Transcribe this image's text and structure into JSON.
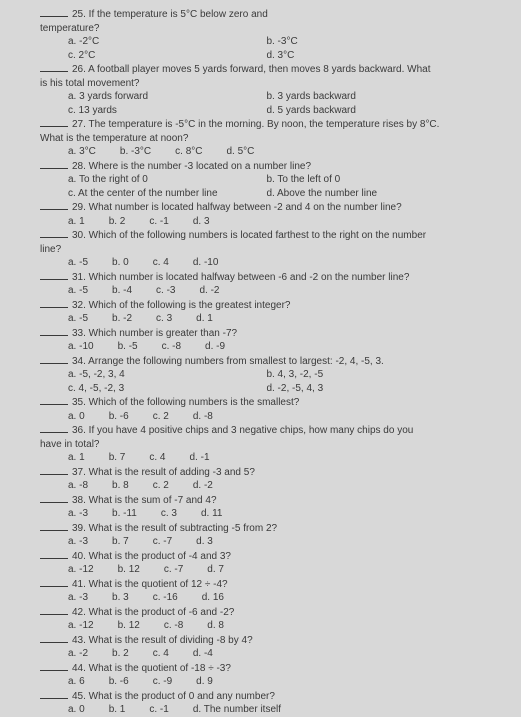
{
  "questions": [
    {
      "num": "25",
      "stem": "If the temperature is 5°C below zero and",
      "cont": "temperature?",
      "opts": [
        "a. -2°C",
        "b. -3°C",
        "c. 2°C",
        "d. 3°C"
      ],
      "layout": "2col"
    },
    {
      "num": "26",
      "stem": "A football player moves 5 yards forward, then moves 8 yards backward. What",
      "cont": "is his total movement?",
      "opts": [
        "a. 3 yards forward",
        "b. 3 yards backward",
        "c. 13 yards",
        "d. 5 yards backward"
      ],
      "layout": "2col-rev"
    },
    {
      "num": "27",
      "stem": "The temperature is -5°C in the morning. By noon, the temperature rises by 8°C.",
      "cont": "What is the temperature at noon?",
      "opts": [
        "a. 3°C",
        "b. -3°C",
        "c. 8°C",
        "d. 5°C"
      ],
      "layout": "row"
    },
    {
      "num": "28",
      "stem": "Where is the number -3 located on a number line?",
      "opts": [
        "a. To the right of 0",
        "b. To the left of 0",
        "c. At the center of the number line",
        "d. Above the number line"
      ],
      "layout": "2col"
    },
    {
      "num": "29",
      "stem": "What number is located halfway between -2 and 4 on the number line?",
      "opts": [
        "a. 1",
        "b. 2",
        "c. -1",
        "d. 3"
      ],
      "layout": "row"
    },
    {
      "num": "30",
      "stem": "Which of the following numbers is located farthest to the right on the number",
      "cont": "line?",
      "opts": [
        "a. -5",
        "b. 0",
        "c. 4",
        "d. -10"
      ],
      "layout": "row"
    },
    {
      "num": "31",
      "stem": "Which number is located halfway between -6 and -2 on the number line?",
      "opts": [
        "a. -5",
        "b. -4",
        "c. -3",
        "d. -2"
      ],
      "layout": "row"
    },
    {
      "num": "32",
      "stem": "Which of the following is the greatest integer?",
      "opts": [
        "a. -5",
        "b. -2",
        "c. 3",
        "d. 1"
      ],
      "layout": "row"
    },
    {
      "num": "33",
      "stem": "Which number is greater than -7?",
      "opts": [
        "a. -10",
        "b. -5",
        "c. -8",
        "d. -9"
      ],
      "layout": "row"
    },
    {
      "num": "34",
      "stem": "Arrange the following numbers from smallest to largest: -2, 4, -5, 3.",
      "opts": [
        "a. -5, -2, 3, 4",
        "b. 4, 3, -2, -5",
        "c. 4, -5, -2, 3",
        "d. -2, -5, 4, 3"
      ],
      "layout": "2col"
    },
    {
      "num": "35",
      "stem": "Which of the following numbers is the smallest?",
      "opts": [
        "a. 0",
        "b. -6",
        "c. 2",
        "d. -8"
      ],
      "layout": "row"
    },
    {
      "num": "36",
      "stem": "If you have 4 positive chips and 3 negative chips, how many chips do you",
      "cont": "have in total?",
      "opts": [
        "a. 1",
        "b. 7",
        "c. 4",
        "d. -1"
      ],
      "layout": "row"
    },
    {
      "num": "37",
      "stem": "What is the result of adding -3 and 5?",
      "opts": [
        "a. -8",
        "b. 8",
        "c. 2",
        "d. -2"
      ],
      "layout": "row"
    },
    {
      "num": "38",
      "stem": "What is the sum of -7 and 4?",
      "opts": [
        "a. -3",
        "b. -11",
        "c. 3",
        "d. 11"
      ],
      "layout": "row"
    },
    {
      "num": "39",
      "stem": "What is the result of subtracting -5 from 2?",
      "opts": [
        "a. -3",
        "b. 7",
        "c. -7",
        "d. 3"
      ],
      "layout": "row"
    },
    {
      "num": "40",
      "stem": "What is the product of -4 and 3?",
      "opts": [
        "a. -12",
        "b. 12",
        "c. -7",
        "d. 7"
      ],
      "layout": "row"
    },
    {
      "num": "41",
      "stem": "What is the quotient of 12 ÷ -4?",
      "opts": [
        "a. -3",
        "b. 3",
        "c. -16",
        "d. 16"
      ],
      "layout": "row"
    },
    {
      "num": "42",
      "stem": "What is the product of -6 and -2?",
      "opts": [
        "a. -12",
        "b. 12",
        "c. -8",
        "d. 8"
      ],
      "layout": "row"
    },
    {
      "num": "43",
      "stem": "What is the result of dividing -8 by 4?",
      "opts": [
        "a. -2",
        "b. 2",
        "c. 4",
        "d. -4"
      ],
      "layout": "row"
    },
    {
      "num": "44",
      "stem": "What is the quotient of -18 ÷ -3?",
      "opts": [
        "a. 6",
        "b. -6",
        "c. -9",
        "d. 9"
      ],
      "layout": "row"
    },
    {
      "num": "45",
      "stem": "What is the product of 0 and any number?",
      "opts": [
        "a. 0",
        "b. 1",
        "c. -1",
        "d. The number itself"
      ],
      "layout": "row"
    }
  ]
}
